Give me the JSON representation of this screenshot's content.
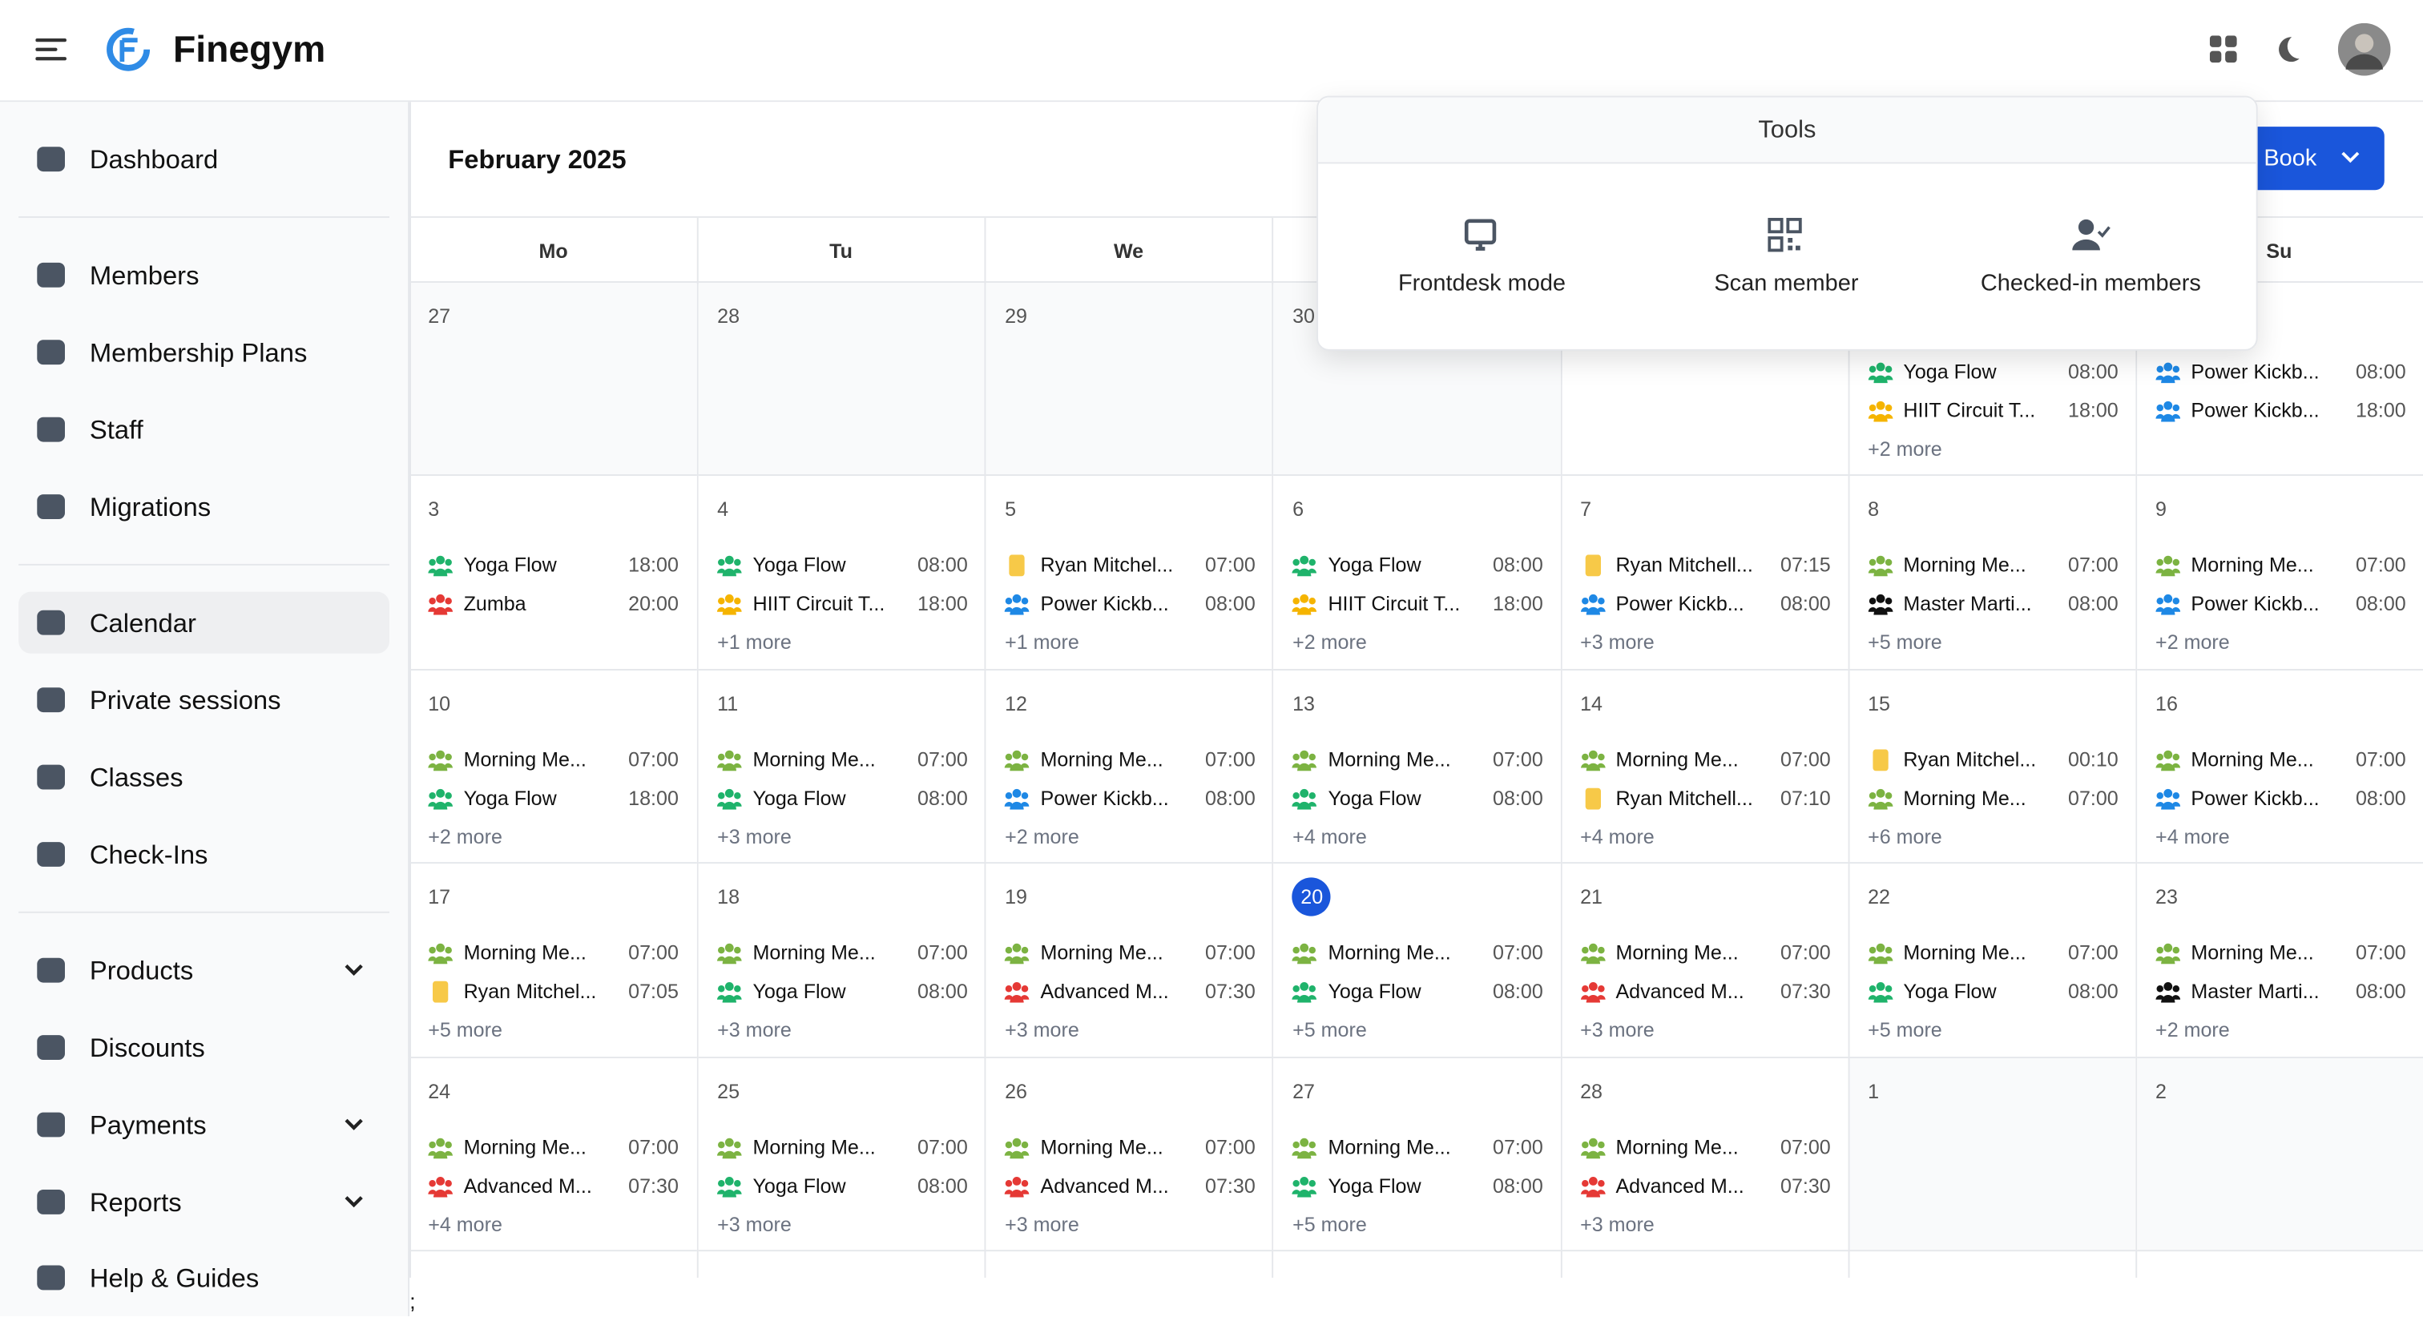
{
  "header": {
    "brand": "Finegym"
  },
  "sidebar": {
    "groups": [
      [
        {
          "label": "Dashboard"
        }
      ],
      [
        {
          "label": "Members"
        },
        {
          "label": "Membership Plans"
        },
        {
          "label": "Staff"
        },
        {
          "label": "Migrations"
        }
      ],
      [
        {
          "label": "Calendar",
          "active": true
        },
        {
          "label": "Private sessions"
        },
        {
          "label": "Classes"
        },
        {
          "label": "Check-Ins"
        }
      ],
      [
        {
          "label": "Products",
          "expandable": true
        },
        {
          "label": "Discounts"
        },
        {
          "label": "Payments",
          "expandable": true
        },
        {
          "label": "Reports",
          "expandable": true
        },
        {
          "label": "Help & Guides"
        }
      ]
    ]
  },
  "calendar": {
    "title": "February 2025",
    "book_button": "Book",
    "weekdays": [
      "Mo",
      "Tu",
      "We",
      null,
      null,
      null,
      "Su"
    ],
    "weeks": [
      [
        {
          "day": "27",
          "outside": true,
          "events": []
        },
        {
          "day": "28",
          "outside": true,
          "events": []
        },
        {
          "day": "29",
          "outside": true,
          "events": []
        },
        {
          "day": "30",
          "outside": true,
          "events": []
        },
        {
          "day": null,
          "events": []
        },
        {
          "day": null,
          "events": [
            {
              "title": "Yoga Flow",
              "time": "08:00",
              "color": "#1fb36b"
            },
            {
              "title": "HIIT Circuit T...",
              "time": "18:00",
              "color": "#f5b400"
            }
          ],
          "more": "+2 more"
        },
        {
          "day": null,
          "events": [
            {
              "title": "Power Kickb...",
              "time": "08:00",
              "color": "#1e88e5"
            },
            {
              "title": "Power Kickb...",
              "time": "18:00",
              "color": "#1e88e5"
            }
          ]
        }
      ],
      [
        {
          "day": "3",
          "events": [
            {
              "title": "Yoga Flow",
              "time": "18:00",
              "color": "#1fb36b"
            },
            {
              "title": "Zumba",
              "time": "20:00",
              "color": "#e53935"
            }
          ]
        },
        {
          "day": "4",
          "events": [
            {
              "title": "Yoga Flow",
              "time": "08:00",
              "color": "#1fb36b"
            },
            {
              "title": "HIIT Circuit T...",
              "time": "18:00",
              "color": "#f5b400"
            }
          ],
          "more": "+1 more"
        },
        {
          "day": "5",
          "events": [
            {
              "title": "Ryan Mitchel...",
              "time": "07:00",
              "color": "#f7c948",
              "kind": "private"
            },
            {
              "title": "Power Kickb...",
              "time": "08:00",
              "color": "#1e88e5"
            }
          ],
          "more": "+1 more"
        },
        {
          "day": "6",
          "events": [
            {
              "title": "Yoga Flow",
              "time": "08:00",
              "color": "#1fb36b"
            },
            {
              "title": "HIIT Circuit T...",
              "time": "18:00",
              "color": "#f5b400"
            }
          ],
          "more": "+2 more"
        },
        {
          "day": "7",
          "events": [
            {
              "title": "Ryan Mitchell...",
              "time": "07:15",
              "color": "#f7c948",
              "kind": "private"
            },
            {
              "title": "Power Kickb...",
              "time": "08:00",
              "color": "#1e88e5"
            }
          ],
          "more": "+3 more"
        },
        {
          "day": "8",
          "events": [
            {
              "title": "Morning Me...",
              "time": "07:00",
              "color": "#7cb342"
            },
            {
              "title": "Master Marti...",
              "time": "08:00",
              "color": "#111111"
            }
          ],
          "more": "+5 more"
        },
        {
          "day": "9",
          "events": [
            {
              "title": "Morning Me...",
              "time": "07:00",
              "color": "#7cb342"
            },
            {
              "title": "Power Kickb...",
              "time": "08:00",
              "color": "#1e88e5"
            }
          ],
          "more": "+2 more"
        }
      ],
      [
        {
          "day": "10",
          "events": [
            {
              "title": "Morning Me...",
              "time": "07:00",
              "color": "#7cb342"
            },
            {
              "title": "Yoga Flow",
              "time": "18:00",
              "color": "#1fb36b"
            }
          ],
          "more": "+2 more"
        },
        {
          "day": "11",
          "events": [
            {
              "title": "Morning Me...",
              "time": "07:00",
              "color": "#7cb342"
            },
            {
              "title": "Yoga Flow",
              "time": "08:00",
              "color": "#1fb36b"
            }
          ],
          "more": "+3 more"
        },
        {
          "day": "12",
          "events": [
            {
              "title": "Morning Me...",
              "time": "07:00",
              "color": "#7cb342"
            },
            {
              "title": "Power Kickb...",
              "time": "08:00",
              "color": "#1e88e5"
            }
          ],
          "more": "+2 more"
        },
        {
          "day": "13",
          "events": [
            {
              "title": "Morning Me...",
              "time": "07:00",
              "color": "#7cb342"
            },
            {
              "title": "Yoga Flow",
              "time": "08:00",
              "color": "#1fb36b"
            }
          ],
          "more": "+4 more"
        },
        {
          "day": "14",
          "events": [
            {
              "title": "Morning Me...",
              "time": "07:00",
              "color": "#7cb342"
            },
            {
              "title": "Ryan Mitchell...",
              "time": "07:10",
              "color": "#f7c948",
              "kind": "private"
            }
          ],
          "more": "+4 more"
        },
        {
          "day": "15",
          "events": [
            {
              "title": "Ryan Mitchel...",
              "time": "00:10",
              "color": "#f7c948",
              "kind": "private"
            },
            {
              "title": "Morning Me...",
              "time": "07:00",
              "color": "#7cb342"
            }
          ],
          "more": "+6 more"
        },
        {
          "day": "16",
          "events": [
            {
              "title": "Morning Me...",
              "time": "07:00",
              "color": "#7cb342"
            },
            {
              "title": "Power Kickb...",
              "time": "08:00",
              "color": "#1e88e5"
            }
          ],
          "more": "+4 more"
        }
      ],
      [
        {
          "day": "17",
          "events": [
            {
              "title": "Morning Me...",
              "time": "07:00",
              "color": "#7cb342"
            },
            {
              "title": "Ryan Mitchel...",
              "time": "07:05",
              "color": "#f7c948",
              "kind": "private"
            }
          ],
          "more": "+5 more"
        },
        {
          "day": "18",
          "events": [
            {
              "title": "Morning Me...",
              "time": "07:00",
              "color": "#7cb342"
            },
            {
              "title": "Yoga Flow",
              "time": "08:00",
              "color": "#1fb36b"
            }
          ],
          "more": "+3 more"
        },
        {
          "day": "19",
          "events": [
            {
              "title": "Morning Me...",
              "time": "07:00",
              "color": "#7cb342"
            },
            {
              "title": "Advanced M...",
              "time": "07:30",
              "color": "#e53935"
            }
          ],
          "more": "+3 more"
        },
        {
          "day": "20",
          "today": true,
          "events": [
            {
              "title": "Morning Me...",
              "time": "07:00",
              "color": "#7cb342"
            },
            {
              "title": "Yoga Flow",
              "time": "08:00",
              "color": "#1fb36b"
            }
          ],
          "more": "+5 more"
        },
        {
          "day": "21",
          "events": [
            {
              "title": "Morning Me...",
              "time": "07:00",
              "color": "#7cb342"
            },
            {
              "title": "Advanced M...",
              "time": "07:30",
              "color": "#e53935"
            }
          ],
          "more": "+3 more"
        },
        {
          "day": "22",
          "events": [
            {
              "title": "Morning Me...",
              "time": "07:00",
              "color": "#7cb342"
            },
            {
              "title": "Yoga Flow",
              "time": "08:00",
              "color": "#1fb36b"
            }
          ],
          "more": "+5 more"
        },
        {
          "day": "23",
          "events": [
            {
              "title": "Morning Me...",
              "time": "07:00",
              "color": "#7cb342"
            },
            {
              "title": "Master Marti...",
              "time": "08:00",
              "color": "#111111"
            }
          ],
          "more": "+2 more"
        }
      ],
      [
        {
          "day": "24",
          "events": [
            {
              "title": "Morning Me...",
              "time": "07:00",
              "color": "#7cb342"
            },
            {
              "title": "Advanced M...",
              "time": "07:30",
              "color": "#e53935"
            }
          ],
          "more": "+4 more"
        },
        {
          "day": "25",
          "events": [
            {
              "title": "Morning Me...",
              "time": "07:00",
              "color": "#7cb342"
            },
            {
              "title": "Yoga Flow",
              "time": "08:00",
              "color": "#1fb36b"
            }
          ],
          "more": "+3 more"
        },
        {
          "day": "26",
          "events": [
            {
              "title": "Morning Me...",
              "time": "07:00",
              "color": "#7cb342"
            },
            {
              "title": "Advanced M...",
              "time": "07:30",
              "color": "#e53935"
            }
          ],
          "more": "+3 more"
        },
        {
          "day": "27",
          "events": [
            {
              "title": "Morning Me...",
              "time": "07:00",
              "color": "#7cb342"
            },
            {
              "title": "Yoga Flow",
              "time": "08:00",
              "color": "#1fb36b"
            }
          ],
          "more": "+5 more"
        },
        {
          "day": "28",
          "events": [
            {
              "title": "Morning Me...",
              "time": "07:00",
              "color": "#7cb342"
            },
            {
              "title": "Advanced M...",
              "time": "07:30",
              "color": "#e53935"
            }
          ],
          "more": "+3 more"
        },
        {
          "day": "1",
          "outside": true,
          "events": []
        },
        {
          "day": "2",
          "outside": true,
          "events": []
        }
      ]
    ],
    "footer_text": ";"
  },
  "tools": {
    "title": "Tools",
    "items": [
      {
        "label": "Frontdesk mode"
      },
      {
        "label": "Scan member"
      },
      {
        "label": "Checked-in members"
      }
    ]
  }
}
